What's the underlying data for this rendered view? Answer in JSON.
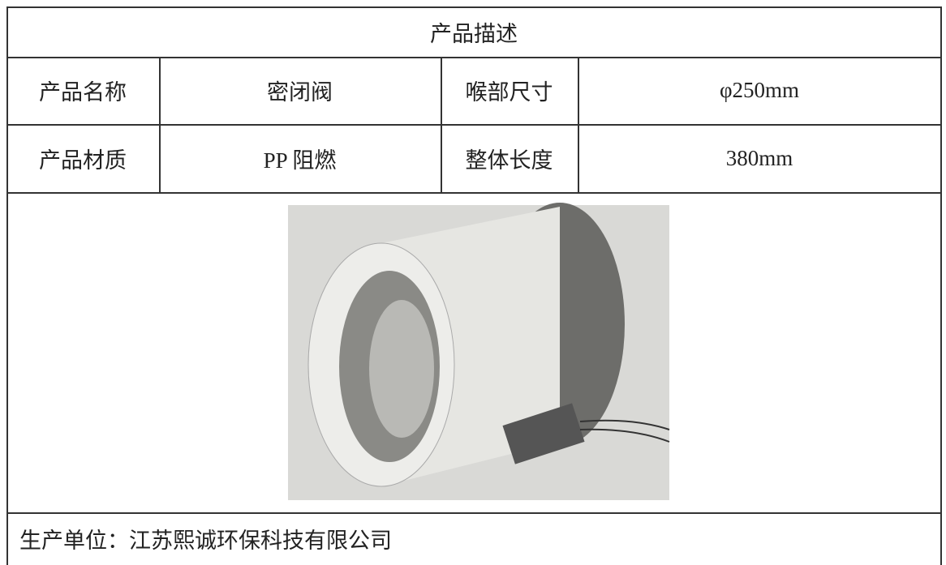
{
  "table": {
    "title": "产品描述",
    "rows": [
      [
        "产品名称",
        "密闭阀",
        "喉部尺寸",
        "φ250mm"
      ],
      [
        "产品材质",
        "PP 阻燃",
        "整体长度",
        "380mm"
      ]
    ],
    "footer": "生产单位：江苏熙诚环保科技有限公司"
  }
}
